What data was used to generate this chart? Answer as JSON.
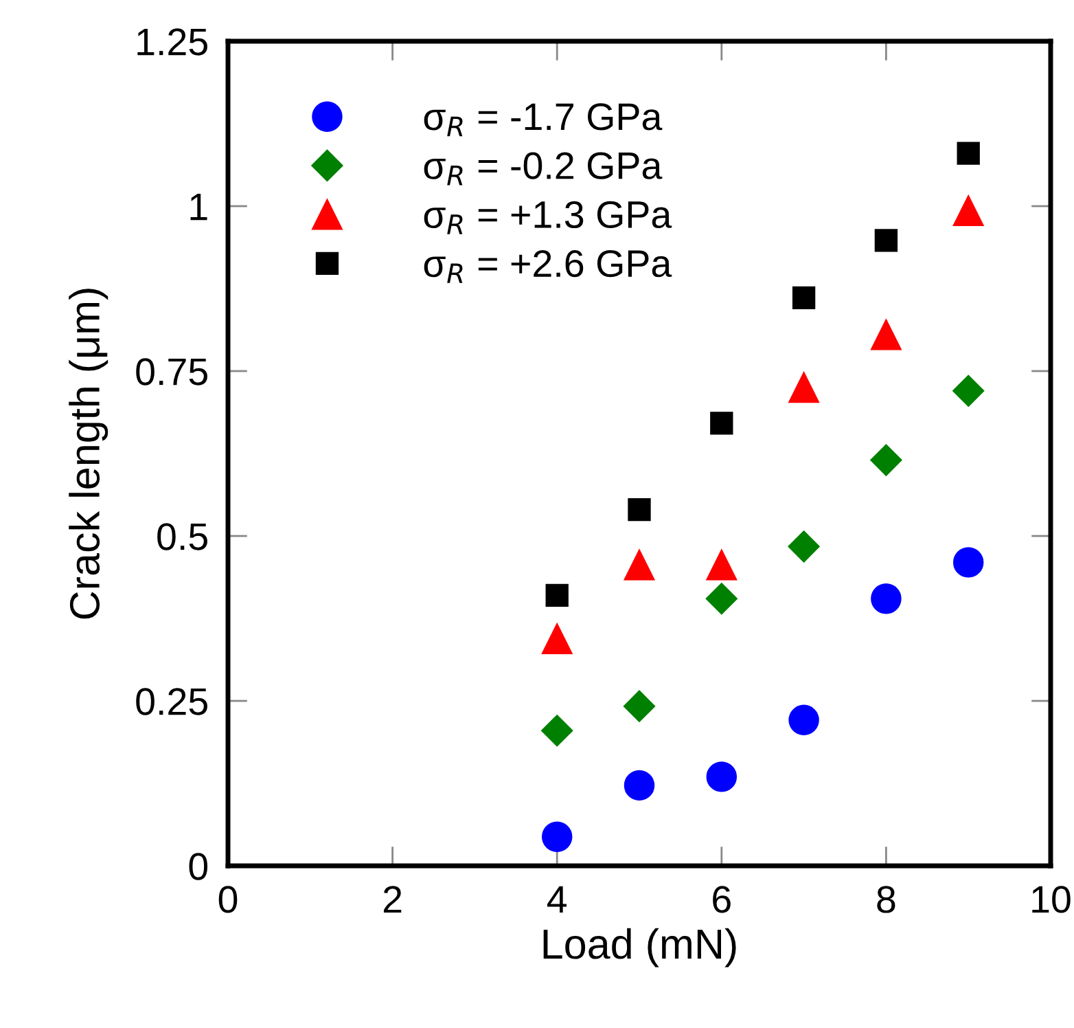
{
  "chart_data": {
    "type": "scatter",
    "xlabel": "Load (mN)",
    "ylabel": "Crack length (μm)",
    "x": [
      4,
      5,
      6,
      7,
      8,
      9
    ],
    "series": [
      {
        "name": "σ$_{R}$ = -1.7 GPa",
        "color": "#0000ff",
        "marker": "circle",
        "values": [
          0.044,
          0.122,
          0.135,
          0.221,
          0.405,
          0.46
        ]
      },
      {
        "name": "σ$_{R}$ = -0.2 GPa",
        "color": "#008000",
        "marker": "diamond",
        "values": [
          0.205,
          0.242,
          0.405,
          0.484,
          0.615,
          0.72
        ]
      },
      {
        "name": "σ$_{R}$ = +1.3 GPa",
        "color": "#ff0000",
        "marker": "triangle",
        "values": [
          0.344,
          0.456,
          0.456,
          0.725,
          0.805,
          0.993
        ]
      },
      {
        "name": "σ$_{R}$ = +2.6 GPa",
        "color": "#000000",
        "marker": "square",
        "values": [
          0.41,
          0.54,
          0.671,
          0.861,
          0.948,
          1.08
        ]
      }
    ],
    "xlim": [
      0,
      10
    ],
    "xticks": [
      0,
      2,
      4,
      6,
      8,
      10
    ],
    "ylim": [
      0,
      1.25
    ],
    "yticks": [
      0,
      0.25,
      0.5,
      0.75,
      1,
      1.25
    ],
    "grid": false,
    "legend": "top left"
  }
}
